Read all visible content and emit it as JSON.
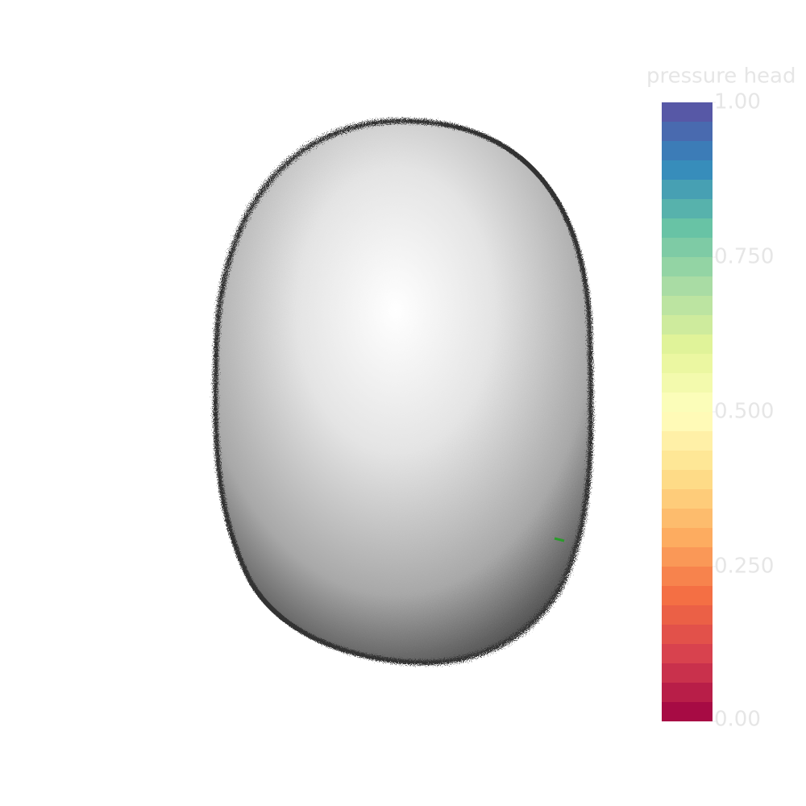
{
  "colorbar": {
    "title": "pressure head",
    "range": [
      0,
      1
    ],
    "ticks": [
      {
        "value": 0,
        "label": "0.00"
      },
      {
        "value": 0.25,
        "label": "0.250"
      },
      {
        "value": 0.5,
        "label": "0.500"
      },
      {
        "value": 0.75,
        "label": "0.750"
      },
      {
        "value": 1,
        "label": "1.00"
      }
    ],
    "colors": [
      "#9e0142",
      "#d53e4f",
      "#f46d43",
      "#fdae61",
      "#fee08b",
      "#ffffbf",
      "#e6f598",
      "#abdda4",
      "#66c2a5",
      "#3288bd",
      "#5e4fa2"
    ]
  }
}
